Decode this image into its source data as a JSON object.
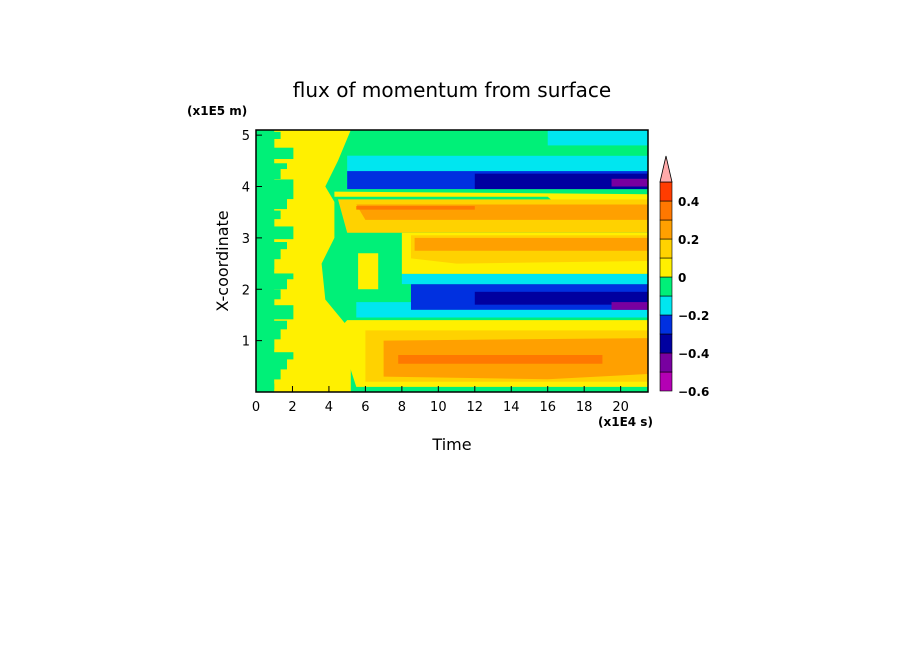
{
  "chart_data": {
    "type": "heatmap",
    "title": "flux of momentum from surface",
    "xlabel": "Time",
    "ylabel": "X-coordinate",
    "x_unit": "(x1E4 s)",
    "y_unit": "(x1E5 m)",
    "xlim": [
      0,
      21.5
    ],
    "ylim": [
      0,
      5.1
    ],
    "x_ticks": [
      "0",
      "2",
      "4",
      "6",
      "8",
      "10",
      "12",
      "14",
      "16",
      "18",
      "20"
    ],
    "y_ticks": [
      "1",
      "2",
      "3",
      "4",
      "5"
    ],
    "colorbar": {
      "levels": [
        -0.6,
        -0.5,
        -0.4,
        -0.3,
        -0.2,
        -0.1,
        0,
        0.1,
        0.2,
        0.3,
        0.4,
        0.5
      ],
      "colors": [
        "#b400b4",
        "#7800a0",
        "#0000a0",
        "#0030e0",
        "#00e6f0",
        "#00f078",
        "#fff000",
        "#ffd200",
        "#ffa000",
        "#ff7800",
        "#ff3c00",
        "#ffaaaa"
      ],
      "tick_labels": [
        "0.4",
        "0.2",
        "0",
        "−0.2",
        "−0.4",
        "−0.6"
      ],
      "extend": "max"
    }
  }
}
